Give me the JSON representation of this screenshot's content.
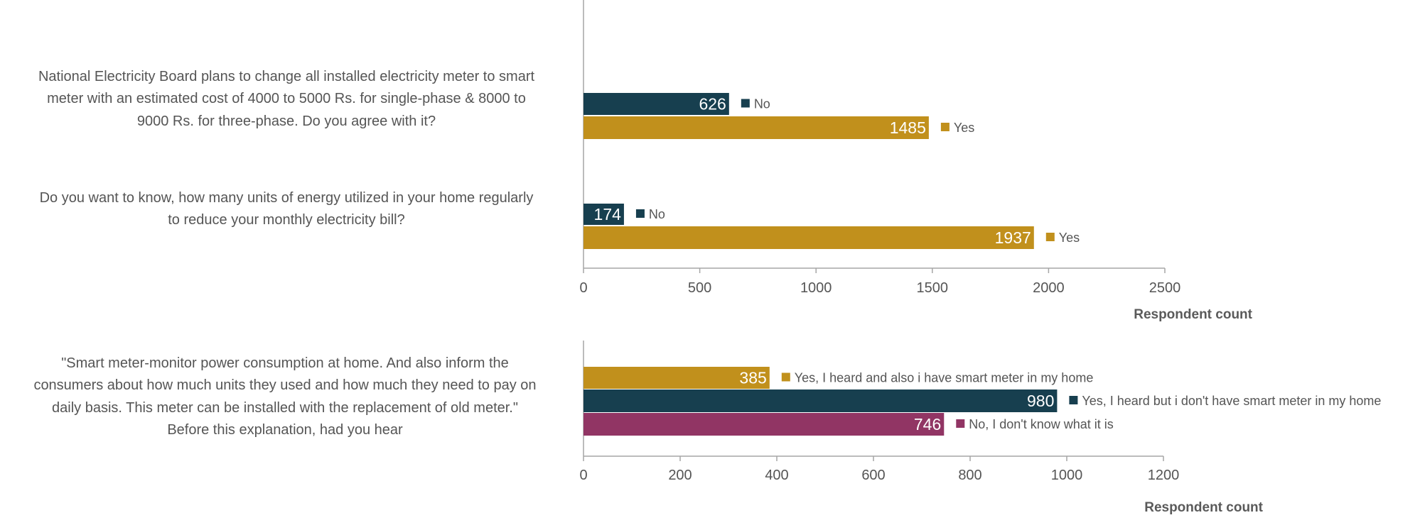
{
  "colors": {
    "yes": "#C1901C",
    "no": "#173F4F",
    "dont_know": "#913564",
    "axis": "#a6a6a6",
    "text": "#555555"
  },
  "chart_data": [
    {
      "type": "bar",
      "orientation": "horizontal",
      "xlabel": "Respondent count",
      "xlim": [
        0,
        2500
      ],
      "xticks": [
        0,
        500,
        1000,
        1500,
        2000,
        2500
      ],
      "questions": [
        {
          "label_lines": [
            "National Electricity Board plans to change all installed electricity meter to smart",
            "meter with an estimated cost of 4000 to 5000 Rs. for single-phase & 8000 to",
            "9000 Rs. for three-phase. Do you agree with it?"
          ],
          "bars": [
            {
              "name": "No",
              "value": 626,
              "color": "no"
            },
            {
              "name": "Yes",
              "value": 1485,
              "color": "yes"
            }
          ]
        },
        {
          "label_lines": [
            "Do you want to know, how many units of energy utilized in your home regularly",
            "to reduce your monthly electricity bill?"
          ],
          "bars": [
            {
              "name": "No",
              "value": 174,
              "color": "no"
            },
            {
              "name": "Yes",
              "value": 1937,
              "color": "yes"
            }
          ]
        }
      ]
    },
    {
      "type": "bar",
      "orientation": "horizontal",
      "xlabel": "Respondent count",
      "xlim": [
        0,
        1200
      ],
      "xticks": [
        0,
        200,
        400,
        600,
        800,
        1000,
        1200
      ],
      "questions": [
        {
          "label_lines": [
            "\"Smart meter-monitor power consumption at home. And also inform the",
            "consumers about how much units they used and how much they need to pay on",
            "daily basis. This meter can be installed with the replacement of old meter.\"",
            "Before this explanation, had you hear"
          ],
          "bars": [
            {
              "name": "Yes, I heard and also i have smart meter in my home",
              "value": 385,
              "color": "yes"
            },
            {
              "name": "Yes, I heard but i don't have smart meter in my home",
              "value": 980,
              "color": "no"
            },
            {
              "name": "No, I don't know what it is",
              "value": 746,
              "color": "dont_know"
            }
          ]
        }
      ]
    }
  ]
}
